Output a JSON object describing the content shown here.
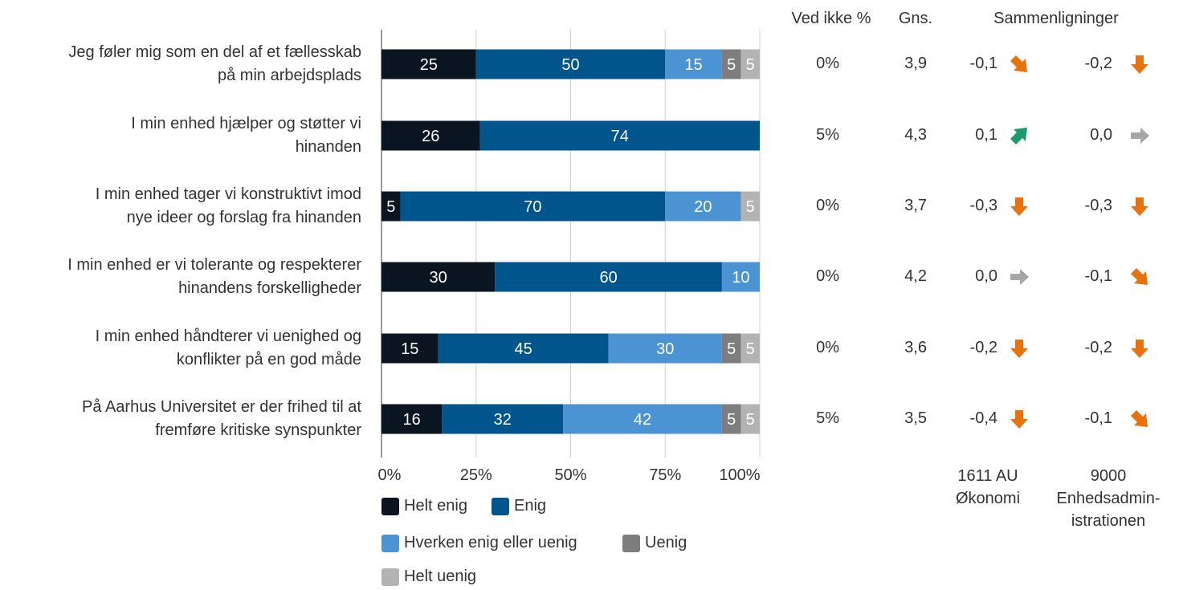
{
  "chart_data": {
    "type": "bar",
    "orientation": "horizontal-stacked-percent",
    "categories": [
      "Jeg føler mig som en del af et fællesskab på min arbejdsplads",
      "I min enhed hjælper og støtter vi hinanden",
      "I min enhed tager vi konstruktivt imod nye ideer og forslag fra hinanden",
      "I min enhed er vi tolerante og respekterer hinandens forskelligheder",
      "I min enhed håndterer vi uenighed og konflikter på en god måde",
      "På Aarhus Universitet er der frihed til at fremføre kritiske synspunkter"
    ],
    "category_lines": [
      [
        "Jeg føler mig som en del af et fællesskab",
        "på min arbejdsplads"
      ],
      [
        "I min enhed hjælper og støtter vi",
        "hinanden"
      ],
      [
        "I min enhed tager vi konstruktivt imod",
        "nye ideer og forslag fra hinanden"
      ],
      [
        "I min enhed er vi tolerante og respekterer",
        "hinandens forskelligheder"
      ],
      [
        "I min enhed håndterer vi uenighed og",
        "konflikter på en god måde"
      ],
      [
        "På Aarhus Universitet er der frihed til at",
        "fremføre kritiske synspunkter"
      ]
    ],
    "series": [
      {
        "name": "Helt enig",
        "color": "#0b1521",
        "values": [
          25,
          26,
          5,
          30,
          15,
          16
        ]
      },
      {
        "name": "Enig",
        "color": "#00558c",
        "values": [
          50,
          74,
          70,
          60,
          45,
          32
        ]
      },
      {
        "name": "Hverken enig eller uenig",
        "color": "#4b93d3",
        "values": [
          15,
          0,
          20,
          10,
          30,
          42
        ]
      },
      {
        "name": "Uenig",
        "color": "#7d7d7d",
        "values": [
          5,
          0,
          0,
          0,
          5,
          5
        ]
      },
      {
        "name": "Helt uenig",
        "color": "#b3b3b3",
        "values": [
          5,
          0,
          5,
          0,
          5,
          5
        ]
      }
    ],
    "x_ticks": [
      "0%",
      "25%",
      "50%",
      "75%",
      "100%"
    ],
    "xlim": [
      0,
      100
    ],
    "grid": true,
    "legend_position": "bottom",
    "columns": {
      "ved_ikke_header": "Ved ikke %",
      "gns_header": "Gns.",
      "comparisons_header": "Sammenligninger",
      "ved_ikke": [
        "0%",
        "5%",
        "0%",
        "0%",
        "0%",
        "5%"
      ],
      "gns": [
        "3,9",
        "4,3",
        "3,7",
        "4,2",
        "3,6",
        "3,5"
      ],
      "comparison_1": {
        "label_lines": [
          "1611 AU",
          "Økonomi"
        ],
        "values": [
          "-0,1",
          "0,1",
          "-0,3",
          "0,0",
          "-0,2",
          "-0,4"
        ],
        "arrows": [
          "down-right",
          "up-right",
          "down",
          "right",
          "down",
          "down"
        ]
      },
      "comparison_2": {
        "label_lines": [
          "9000",
          "Enhedsadmin-",
          "istrationen"
        ],
        "values": [
          "-0,2",
          "0,0",
          "-0,3",
          "-0,1",
          "-0,2",
          "-0,1"
        ],
        "arrows": [
          "down",
          "right",
          "down",
          "down-right",
          "down",
          "down-right"
        ]
      }
    },
    "arrow_colors": {
      "down": "#e8730e",
      "down-right": "#e8730e",
      "up-right": "#1e9a6e",
      "right": "#a6a6a6"
    },
    "value_label_color_dark": "#ffffff"
  }
}
